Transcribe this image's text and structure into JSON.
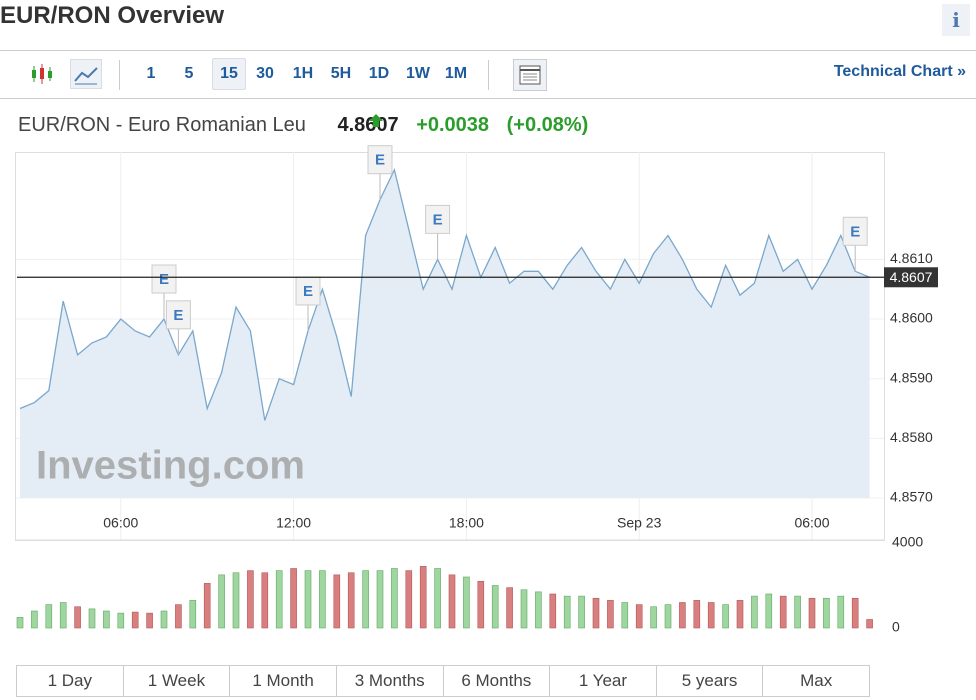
{
  "header": {
    "title": "EUR/RON Overview",
    "info": "i"
  },
  "toolbar": {
    "intervals": [
      "1",
      "5",
      "15",
      "30",
      "1H",
      "5H",
      "1D",
      "1W",
      "1M"
    ],
    "active": 2,
    "link": "Technical Chart »"
  },
  "quote": {
    "name": "EUR/RON - Euro Romanian Leu",
    "price": "4.8607",
    "change": "+0.0038",
    "change_pct": "(+0.08%)"
  },
  "chart_data": [
    {
      "type": "area",
      "color": "#7aa7cc",
      "fill": "#e4edf5",
      "watermark": "Investing.com",
      "categories": [
        null,
        null,
        null,
        null,
        null,
        null,
        null,
        "06:00",
        null,
        null,
        null,
        null,
        null,
        null,
        null,
        null,
        null,
        null,
        null,
        "12:00",
        null,
        null,
        null,
        null,
        null,
        null,
        null,
        null,
        null,
        null,
        null,
        "18:00",
        null,
        null,
        null,
        null,
        null,
        null,
        null,
        null,
        null,
        null,
        null,
        "Sep 23",
        null,
        null,
        null,
        null,
        null,
        null,
        null,
        null,
        null,
        null,
        null,
        "06:00",
        null,
        null,
        null,
        null
      ],
      "values": [
        4.8585,
        4.8586,
        4.8588,
        4.8603,
        4.8594,
        4.8596,
        4.8597,
        4.86,
        4.8598,
        4.8597,
        4.86,
        4.8594,
        4.8598,
        4.8585,
        4.8591,
        4.8602,
        4.8598,
        4.8583,
        4.859,
        4.8589,
        4.8598,
        4.8605,
        4.8597,
        4.8587,
        4.8614,
        4.862,
        4.8625,
        4.8615,
        4.8605,
        4.861,
        4.8605,
        4.8614,
        4.8607,
        4.8612,
        4.8606,
        4.8608,
        4.8608,
        4.8605,
        4.8609,
        4.8612,
        4.8608,
        4.8605,
        4.861,
        4.8606,
        4.8611,
        4.8614,
        4.861,
        4.8605,
        4.8602,
        4.8609,
        4.8604,
        4.8606,
        4.8614,
        4.8608,
        4.861,
        4.8605,
        4.8609,
        4.8614,
        4.8608,
        4.8607
      ],
      "events": [
        null,
        null,
        null,
        null,
        null,
        null,
        null,
        null,
        null,
        null,
        "E",
        "E",
        null,
        null,
        null,
        null,
        null,
        null,
        null,
        null,
        "E",
        null,
        null,
        null,
        null,
        "E",
        null,
        null,
        null,
        "E",
        null,
        null,
        null,
        null,
        null,
        null,
        null,
        null,
        null,
        null,
        null,
        null,
        null,
        null,
        null,
        null,
        null,
        null,
        null,
        null,
        null,
        null,
        null,
        null,
        null,
        null,
        null,
        null,
        "E",
        null
      ],
      "last_value": 4.8607,
      "ylim": [
        4.857,
        4.8628
      ],
      "yticks": [
        {
          "value": 4.857,
          "label": "4.8570"
        },
        {
          "value": 4.858,
          "label": "4.8580"
        },
        {
          "value": 4.859,
          "label": "4.8590"
        },
        {
          "value": 4.86,
          "label": "4.8600"
        },
        {
          "value": 4.861,
          "label": "4.8610"
        }
      ],
      "grid": true
    },
    {
      "type": "bar",
      "up_color": "#9fd6a0",
      "down_color": "#d88080",
      "values": [
        500,
        800,
        1100,
        1200,
        1000,
        900,
        800,
        700,
        750,
        700,
        800,
        1100,
        1300,
        2100,
        2500,
        2600,
        2700,
        2600,
        2700,
        2800,
        2700,
        2700,
        2500,
        2600,
        2700,
        2700,
        2800,
        2700,
        2900,
        2800,
        2500,
        2400,
        2200,
        2000,
        1900,
        1800,
        1700,
        1600,
        1500,
        1500,
        1400,
        1300,
        1200,
        1100,
        1000,
        1100,
        1200,
        1300,
        1200,
        1100,
        1300,
        1500,
        1600,
        1500,
        1500,
        1400,
        1400,
        1500,
        1400,
        400
      ],
      "ylim": [
        0,
        4000
      ],
      "yticks": [
        0,
        4000
      ]
    }
  ],
  "ranges": [
    "1 Day",
    "1 Week",
    "1 Month",
    "3 Months",
    "6 Months",
    "1 Year",
    "5 years",
    "Max"
  ]
}
